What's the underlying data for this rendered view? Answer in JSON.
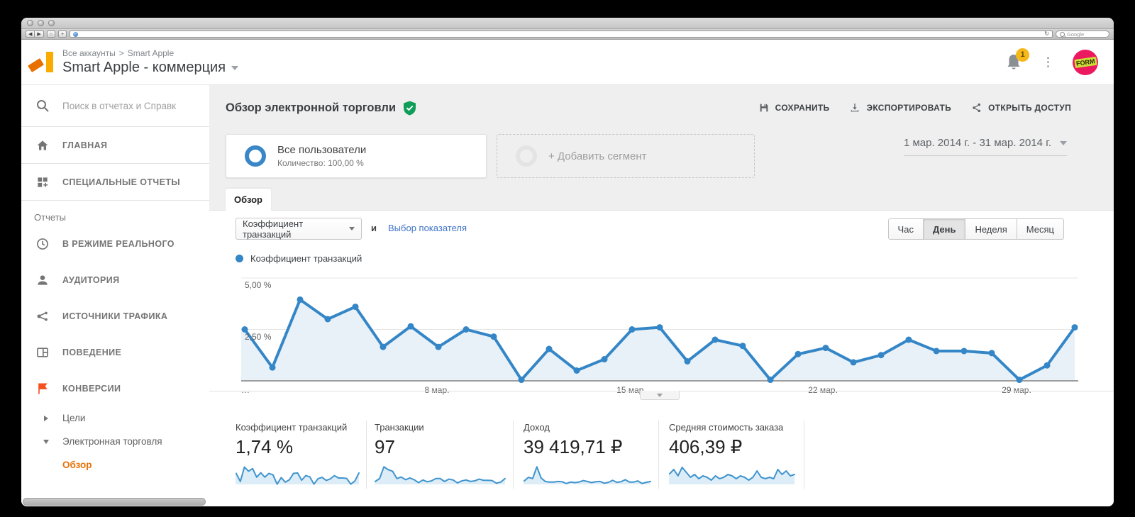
{
  "icons": {
    "back": "◀",
    "forward": "▶",
    "browser_home": "⌂",
    "new_tab": "+",
    "refresh": "↻",
    "overflow_dots": "⋮"
  },
  "browser": {
    "search_placeholder": "Google"
  },
  "header": {
    "breadcrumb_root": "Все аккаунты",
    "breadcrumb_separator": ">",
    "breadcrumb_current": "Smart Apple",
    "account_title": "Smart Apple - коммерция",
    "notification_count": "1",
    "avatar_label": "FORM"
  },
  "sidebar": {
    "search_placeholder": "Поиск в отчетах и Справк",
    "top_items": [
      {
        "label": "ГЛАВНАЯ",
        "icon": "home-icon"
      },
      {
        "label": "СПЕЦИАЛЬНЫЕ ОТЧЕТЫ",
        "icon": "custom-reports-icon"
      }
    ],
    "section_label": "Отчеты",
    "report_items": [
      {
        "label": "В РЕЖИМЕ РЕАЛЬНОГО",
        "icon": "realtime-clock-icon"
      },
      {
        "label": "АУДИТОРИЯ",
        "icon": "audience-person-icon"
      },
      {
        "label": "ИСТОЧНИКИ ТРАФИКА",
        "icon": "acquisition-icon"
      },
      {
        "label": "ПОВЕДЕНИЕ",
        "icon": "behavior-icon"
      },
      {
        "label": "КОНВЕРСИИ",
        "icon": "conversions-flag-icon"
      }
    ],
    "conversion_children": [
      {
        "label": "Цели",
        "expanded": false
      },
      {
        "label": "Электронная торговля",
        "expanded": true
      }
    ],
    "active_child": "Обзор"
  },
  "main": {
    "page_title": "Обзор электронной торговли",
    "actions": {
      "save": "СОХРАНИТЬ",
      "export": "ЭКСПОРТИРОВАТЬ",
      "share": "ОТКРЫТЬ ДОСТУП"
    },
    "segments": {
      "all_users_title": "Все пользователи",
      "all_users_subtitle": "Количество: 100,00 %",
      "add_segment_label": "+ Добавить сегмент"
    },
    "date_range": "1 мар. 2014 г. - 31 мар. 2014 г.",
    "tab_label": "Обзор",
    "controls": {
      "metric_dropdown_value": "Коэффициент транзакций",
      "conjunction": "и",
      "select_metric_link": "Выбор показателя",
      "granularity": [
        "Час",
        "День",
        "Неделя",
        "Месяц"
      ],
      "granularity_active": "День"
    },
    "legend_label": "Коэффициент транзакций",
    "summary_cards": [
      {
        "title": "Коэффициент транзакций",
        "value": "1,74 %"
      },
      {
        "title": "Транзакции",
        "value": "97"
      },
      {
        "title": "Доход",
        "value": "39 419,71 ₽"
      },
      {
        "title": "Средняя стоимость заказа",
        "value": "406,39 ₽"
      }
    ]
  },
  "colors": {
    "accent_orange": "#f57c00",
    "active_link_orange": "#e8710a",
    "chart_blue": "#3486c7",
    "chart_fill": "#e8f1f8",
    "link_blue": "#3f74c6",
    "shield_green": "#0f9d58",
    "badge_amber": "#f6b718",
    "avatar_pink": "#ec1960"
  },
  "chart_data": [
    {
      "type": "line",
      "name": "main-timeseries",
      "title": "Коэффициент транзакций",
      "unit": "%",
      "x_days": [
        1,
        2,
        3,
        4,
        5,
        6,
        7,
        8,
        9,
        10,
        11,
        12,
        13,
        14,
        15,
        16,
        17,
        18,
        19,
        20,
        21,
        22,
        23,
        24,
        25,
        26,
        27,
        28,
        29,
        30,
        31
      ],
      "values": [
        2.5,
        0.65,
        3.95,
        3.0,
        3.6,
        1.65,
        2.65,
        1.65,
        2.5,
        2.15,
        0.05,
        1.55,
        0.5,
        1.05,
        2.5,
        2.6,
        0.95,
        2.0,
        1.7,
        0.05,
        1.3,
        1.6,
        0.9,
        1.25,
        2.0,
        1.45,
        1.45,
        1.35,
        0.05,
        0.75,
        2.6
      ],
      "y_ticks": [
        "5,00 %",
        "2,50 %"
      ],
      "ylim": [
        0,
        5.3
      ],
      "x_tick_labels": [
        "…",
        "8 мар.",
        "15 мар.",
        "22 мар.",
        "29 мар."
      ],
      "grid": true,
      "legend_position": "top-left"
    },
    {
      "type": "line",
      "name": "sparkline-transaction-rate",
      "values": [
        2.5,
        0.65,
        3.95,
        3.0,
        3.6,
        1.65,
        2.65,
        1.65,
        2.5,
        2.15,
        0.05,
        1.55,
        0.5,
        1.05,
        2.5,
        2.6,
        0.95,
        2.0,
        1.7,
        0.05,
        1.3,
        1.6,
        0.9,
        1.25,
        2.0,
        1.45,
        1.45,
        1.35,
        0.05,
        0.75,
        2.6
      ]
    },
    {
      "type": "line",
      "name": "sparkline-transactions",
      "values": [
        1,
        2,
        6,
        5,
        4.5,
        2,
        2.5,
        1.6,
        2.2,
        1.6,
        0.6,
        1.5,
        0.9,
        1.2,
        2,
        2,
        1,
        1.8,
        1.5,
        0.5,
        1.2,
        1.5,
        1,
        1.2,
        1.8,
        1.4,
        1.4,
        1.3,
        0.4,
        0.8,
        2
      ]
    },
    {
      "type": "line",
      "name": "sparkline-revenue",
      "values": [
        1.2,
        2.4,
        2,
        6,
        2.2,
        1,
        0.8,
        0.8,
        1,
        0.9,
        0.3,
        0.8,
        0.6,
        0.8,
        1.3,
        1,
        0.6,
        0.9,
        1,
        0.4,
        0.7,
        1.4,
        0.7,
        0.9,
        1.6,
        0.8,
        0.8,
        1.2,
        0.3,
        0.7,
        1
      ]
    },
    {
      "type": "line",
      "name": "sparkline-avg-order-value",
      "values": [
        3,
        4.2,
        2.4,
        4.8,
        3.4,
        2,
        2.8,
        1.6,
        2.4,
        2,
        1.2,
        2.4,
        1.6,
        2,
        2.8,
        2.4,
        1.6,
        2.4,
        2,
        1.2,
        2,
        3.8,
        2,
        1.6,
        2,
        1.6,
        4.2,
        2.8,
        3.8,
        2.4,
        2.8
      ]
    }
  ]
}
